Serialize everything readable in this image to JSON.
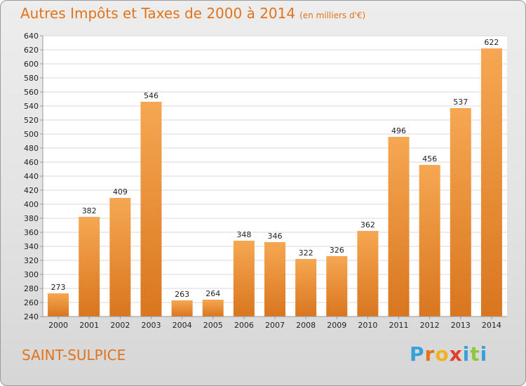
{
  "title": "Autres Impôts et Taxes de 2000 à 2014",
  "title_unit": "(en milliers d'€)",
  "city": "SAINT-SULPICE",
  "logo": {
    "letters": [
      "P",
      "r",
      "o",
      "x",
      "i",
      "t",
      "i"
    ],
    "colors": [
      "#3aa0d8",
      "#e2731a",
      "#f0b31c",
      "#e23d2d",
      "#3aa0d8",
      "#8dc63f",
      "#3aa0d8"
    ]
  },
  "colors": {
    "title": "#e2731a",
    "bar_light": "#f6a752",
    "bar_dark": "#d9761f"
  },
  "chart_data": {
    "type": "bar",
    "title": "Autres Impôts et Taxes de 2000 à 2014",
    "subtitle": "(en milliers d'€)",
    "categories": [
      "2000",
      "2001",
      "2002",
      "2003",
      "2004",
      "2005",
      "2006",
      "2007",
      "2008",
      "2009",
      "2010",
      "2011",
      "2012",
      "2013",
      "2014"
    ],
    "values": [
      273,
      382,
      409,
      546,
      263,
      264,
      348,
      346,
      322,
      326,
      362,
      496,
      456,
      537,
      622
    ],
    "ylim": [
      240,
      640
    ],
    "yticks": [
      240,
      260,
      280,
      300,
      320,
      340,
      360,
      380,
      400,
      420,
      440,
      460,
      480,
      500,
      520,
      540,
      560,
      580,
      600,
      620,
      640
    ],
    "grid": true,
    "xlabel": "",
    "ylabel": ""
  }
}
